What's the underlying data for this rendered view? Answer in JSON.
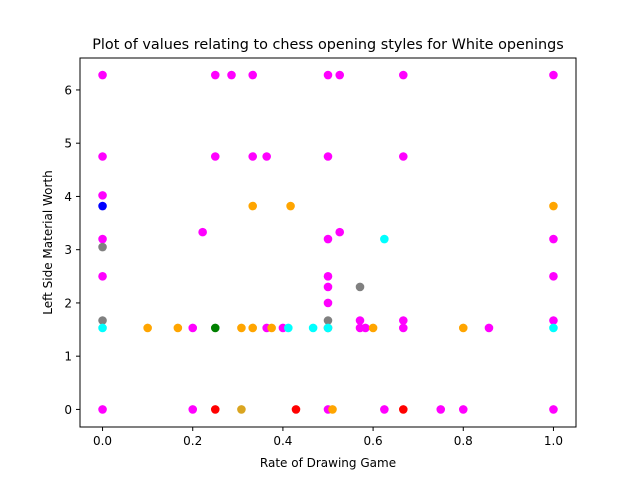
{
  "chart_data": {
    "type": "scatter",
    "title": "Plot of values relating to chess opening styles for White openings",
    "xlabel": "Rate of Drawing Game",
    "ylabel": "Left Side Material Worth",
    "xlim": [
      -0.05,
      1.05
    ],
    "ylim": [
      -0.33,
      6.6
    ],
    "xticks": [
      0.0,
      0.2,
      0.4,
      0.6,
      0.8,
      1.0
    ],
    "xtick_labels": [
      "0.0",
      "0.2",
      "0.4",
      "0.6",
      "0.8",
      "1.0"
    ],
    "yticks": [
      0,
      1,
      2,
      3,
      4,
      5,
      6
    ],
    "ytick_labels": [
      "0",
      "1",
      "2",
      "3",
      "4",
      "5",
      "6"
    ],
    "grid": false,
    "legend": "none",
    "colors": {
      "magenta": "#ff00ff",
      "orange": "#ffa500",
      "blue": "#0000ff",
      "gray": "#808080",
      "cyan": "#00ffff",
      "green": "#008000",
      "red": "#ff0000",
      "goldenrod": "#daa520"
    },
    "points": [
      {
        "x": 0.0,
        "y": 6.28,
        "c": "magenta"
      },
      {
        "x": 0.0,
        "y": 4.75,
        "c": "magenta"
      },
      {
        "x": 0.0,
        "y": 4.02,
        "c": "magenta"
      },
      {
        "x": 0.0,
        "y": 3.82,
        "c": "blue"
      },
      {
        "x": 0.0,
        "y": 3.2,
        "c": "magenta"
      },
      {
        "x": 0.0,
        "y": 3.05,
        "c": "gray"
      },
      {
        "x": 0.0,
        "y": 2.5,
        "c": "magenta"
      },
      {
        "x": 0.0,
        "y": 1.67,
        "c": "gray"
      },
      {
        "x": 0.0,
        "y": 1.53,
        "c": "cyan"
      },
      {
        "x": 0.0,
        "y": 0.0,
        "c": "magenta"
      },
      {
        "x": 0.1,
        "y": 1.53,
        "c": "orange"
      },
      {
        "x": 0.167,
        "y": 1.53,
        "c": "orange"
      },
      {
        "x": 0.2,
        "y": 1.53,
        "c": "magenta"
      },
      {
        "x": 0.2,
        "y": 0.0,
        "c": "magenta"
      },
      {
        "x": 0.222,
        "y": 3.33,
        "c": "magenta"
      },
      {
        "x": 0.25,
        "y": 6.28,
        "c": "magenta"
      },
      {
        "x": 0.25,
        "y": 4.75,
        "c": "magenta"
      },
      {
        "x": 0.25,
        "y": 1.53,
        "c": "green"
      },
      {
        "x": 0.25,
        "y": 0.0,
        "c": "red"
      },
      {
        "x": 0.286,
        "y": 6.28,
        "c": "magenta"
      },
      {
        "x": 0.308,
        "y": 1.53,
        "c": "orange"
      },
      {
        "x": 0.308,
        "y": 0.0,
        "c": "goldenrod"
      },
      {
        "x": 0.333,
        "y": 6.28,
        "c": "magenta"
      },
      {
        "x": 0.333,
        "y": 4.75,
        "c": "magenta"
      },
      {
        "x": 0.333,
        "y": 3.82,
        "c": "orange"
      },
      {
        "x": 0.333,
        "y": 1.53,
        "c": "orange"
      },
      {
        "x": 0.364,
        "y": 4.75,
        "c": "magenta"
      },
      {
        "x": 0.364,
        "y": 1.53,
        "c": "magenta"
      },
      {
        "x": 0.375,
        "y": 1.53,
        "c": "orange"
      },
      {
        "x": 0.4,
        "y": 1.53,
        "c": "magenta"
      },
      {
        "x": 0.412,
        "y": 1.53,
        "c": "cyan"
      },
      {
        "x": 0.417,
        "y": 3.82,
        "c": "orange"
      },
      {
        "x": 0.429,
        "y": 0.0,
        "c": "red"
      },
      {
        "x": 0.467,
        "y": 1.53,
        "c": "cyan"
      },
      {
        "x": 0.5,
        "y": 6.28,
        "c": "magenta"
      },
      {
        "x": 0.5,
        "y": 4.75,
        "c": "magenta"
      },
      {
        "x": 0.5,
        "y": 3.2,
        "c": "magenta"
      },
      {
        "x": 0.5,
        "y": 2.5,
        "c": "magenta"
      },
      {
        "x": 0.5,
        "y": 2.3,
        "c": "magenta"
      },
      {
        "x": 0.5,
        "y": 2.0,
        "c": "magenta"
      },
      {
        "x": 0.5,
        "y": 1.67,
        "c": "gray"
      },
      {
        "x": 0.5,
        "y": 1.53,
        "c": "gray"
      },
      {
        "x": 0.5,
        "y": 0.0,
        "c": "magenta"
      },
      {
        "x": 0.5,
        "y": 1.53,
        "c": "cyan"
      },
      {
        "x": 0.51,
        "y": 0.0,
        "c": "orange"
      },
      {
        "x": 0.526,
        "y": 6.28,
        "c": "magenta"
      },
      {
        "x": 0.526,
        "y": 3.33,
        "c": "magenta"
      },
      {
        "x": 0.571,
        "y": 2.3,
        "c": "gray"
      },
      {
        "x": 0.571,
        "y": 1.67,
        "c": "magenta"
      },
      {
        "x": 0.571,
        "y": 1.53,
        "c": "magenta"
      },
      {
        "x": 0.583,
        "y": 1.53,
        "c": "magenta"
      },
      {
        "x": 0.6,
        "y": 1.53,
        "c": "orange"
      },
      {
        "x": 0.625,
        "y": 3.2,
        "c": "cyan"
      },
      {
        "x": 0.625,
        "y": 0.0,
        "c": "magenta"
      },
      {
        "x": 0.667,
        "y": 6.28,
        "c": "magenta"
      },
      {
        "x": 0.667,
        "y": 4.75,
        "c": "magenta"
      },
      {
        "x": 0.667,
        "y": 1.67,
        "c": "magenta"
      },
      {
        "x": 0.667,
        "y": 1.53,
        "c": "magenta"
      },
      {
        "x": 0.667,
        "y": 0.0,
        "c": "red"
      },
      {
        "x": 0.75,
        "y": 0.0,
        "c": "magenta"
      },
      {
        "x": 0.8,
        "y": 1.53,
        "c": "orange"
      },
      {
        "x": 0.8,
        "y": 0.0,
        "c": "magenta"
      },
      {
        "x": 0.857,
        "y": 1.53,
        "c": "magenta"
      },
      {
        "x": 1.0,
        "y": 6.28,
        "c": "magenta"
      },
      {
        "x": 1.0,
        "y": 3.82,
        "c": "orange"
      },
      {
        "x": 1.0,
        "y": 3.2,
        "c": "magenta"
      },
      {
        "x": 1.0,
        "y": 2.5,
        "c": "magenta"
      },
      {
        "x": 1.0,
        "y": 1.67,
        "c": "magenta"
      },
      {
        "x": 1.0,
        "y": 1.53,
        "c": "cyan"
      },
      {
        "x": 1.0,
        "y": 0.0,
        "c": "magenta"
      }
    ]
  }
}
